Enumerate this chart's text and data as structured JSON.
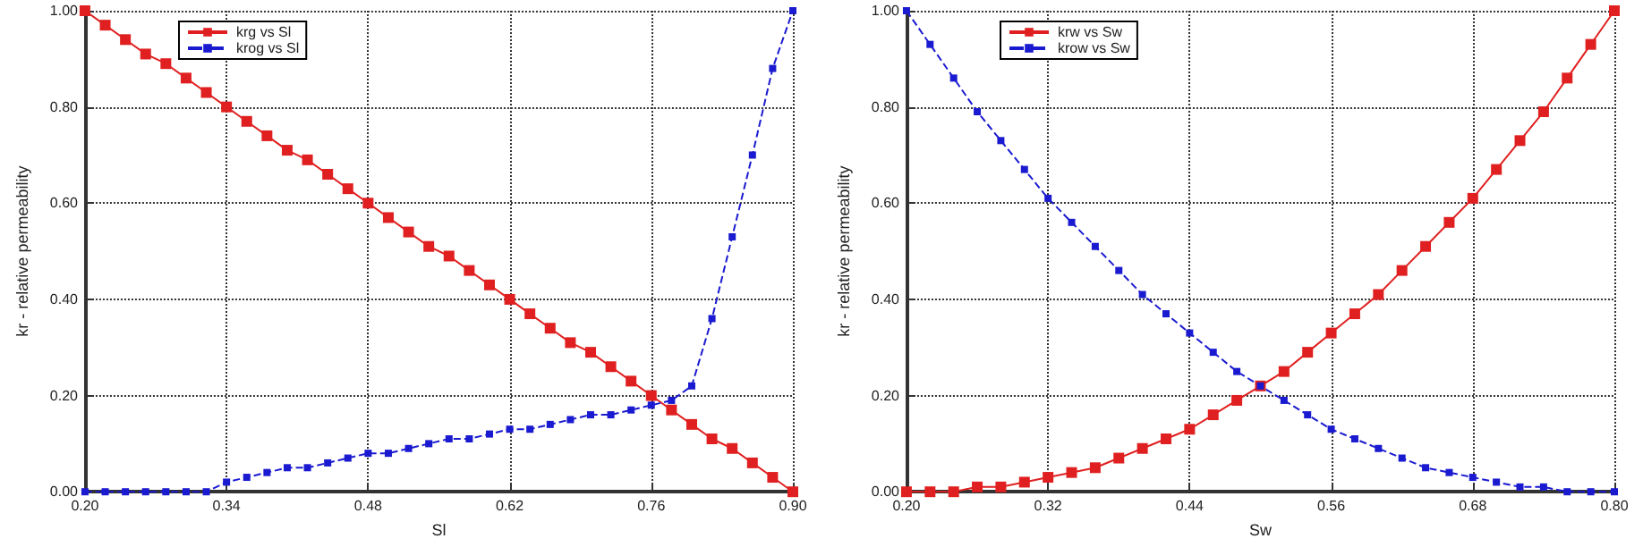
{
  "chart_data": [
    {
      "type": "line",
      "xlabel": "Sl",
      "ylabel": "kr - relative permeability",
      "x": [
        0.2,
        0.22,
        0.24,
        0.26,
        0.28,
        0.3,
        0.32,
        0.34,
        0.36,
        0.38,
        0.4,
        0.42,
        0.44,
        0.46,
        0.48,
        0.5,
        0.52,
        0.54,
        0.56,
        0.58,
        0.6,
        0.62,
        0.64,
        0.66,
        0.68,
        0.7,
        0.72,
        0.74,
        0.76,
        0.78,
        0.8,
        0.82,
        0.84,
        0.86,
        0.88,
        0.9
      ],
      "series": [
        {
          "name": "krg vs Sl",
          "color": "#e02020",
          "line_style": "solid",
          "values": [
            1.0,
            0.97,
            0.94,
            0.91,
            0.89,
            0.86,
            0.83,
            0.8,
            0.77,
            0.74,
            0.71,
            0.69,
            0.66,
            0.63,
            0.6,
            0.57,
            0.54,
            0.51,
            0.49,
            0.46,
            0.43,
            0.4,
            0.37,
            0.34,
            0.31,
            0.29,
            0.26,
            0.23,
            0.2,
            0.17,
            0.14,
            0.11,
            0.09,
            0.06,
            0.03,
            0.0
          ]
        },
        {
          "name": "krog vs Sl",
          "color": "#1a1ad0",
          "line_style": "dashed",
          "values": [
            0.0,
            0.0,
            0.0,
            0.0,
            0.0,
            0.0,
            0.0,
            0.02,
            0.03,
            0.04,
            0.05,
            0.05,
            0.06,
            0.07,
            0.08,
            0.08,
            0.09,
            0.1,
            0.11,
            0.11,
            0.12,
            0.13,
            0.13,
            0.14,
            0.15,
            0.16,
            0.16,
            0.17,
            0.18,
            0.19,
            0.22,
            0.36,
            0.53,
            0.7,
            0.88,
            1.0
          ]
        }
      ],
      "xlim": [
        0.2,
        0.9
      ],
      "xticks": [
        {
          "value": 0.2,
          "label": "0.20"
        },
        0.34,
        0.48,
        0.62,
        0.76,
        {
          "value": 0.9,
          "label": "0.90"
        }
      ],
      "ylim": [
        0,
        1
      ],
      "yticks": [
        {
          "value": 0,
          "label": "0.00"
        },
        {
          "value": 0.2,
          "label": "0.20"
        },
        {
          "value": 0.4,
          "label": "0.40"
        },
        {
          "value": 0.6,
          "label": "0.60"
        },
        {
          "value": 0.8,
          "label": "0.80"
        },
        {
          "value": 1,
          "label": "1.00"
        }
      ],
      "grid": true,
      "legend": "top left",
      "marker": "square"
    },
    {
      "type": "line",
      "xlabel": "Sw",
      "ylabel": "kr - relative permeability",
      "x": [
        0.2,
        0.22,
        0.24,
        0.26,
        0.28,
        0.3,
        0.32,
        0.34,
        0.36,
        0.38,
        0.4,
        0.42,
        0.44,
        0.46,
        0.48,
        0.5,
        0.52,
        0.54,
        0.56,
        0.58,
        0.6,
        0.62,
        0.64,
        0.66,
        0.68,
        0.7,
        0.72,
        0.74,
        0.76,
        0.78,
        0.8
      ],
      "series": [
        {
          "name": "krw vs Sw",
          "color": "#e02020",
          "line_style": "solid",
          "values": [
            0.0,
            0.0,
            0.0,
            0.01,
            0.01,
            0.02,
            0.03,
            0.04,
            0.05,
            0.07,
            0.09,
            0.11,
            0.13,
            0.16,
            0.19,
            0.22,
            0.25,
            0.29,
            0.33,
            0.37,
            0.41,
            0.46,
            0.51,
            0.56,
            0.61,
            0.67,
            0.73,
            0.79,
            0.86,
            0.93,
            1.0
          ]
        },
        {
          "name": "krow vs Sw",
          "color": "#1a1ad0",
          "line_style": "dashed",
          "values": [
            1.0,
            0.93,
            0.86,
            0.79,
            0.73,
            0.67,
            0.61,
            0.56,
            0.51,
            0.46,
            0.41,
            0.37,
            0.33,
            0.29,
            0.25,
            0.22,
            0.19,
            0.16,
            0.13,
            0.11,
            0.09,
            0.07,
            0.05,
            0.04,
            0.03,
            0.02,
            0.01,
            0.01,
            0.0,
            0.0,
            0.0
          ]
        }
      ],
      "xlim": [
        0.2,
        0.8
      ],
      "xticks": [
        {
          "value": 0.2,
          "label": "0.20"
        },
        0.32,
        0.44,
        0.56,
        0.68,
        {
          "value": 0.8,
          "label": "0.80"
        }
      ],
      "ylim": [
        0,
        1
      ],
      "yticks": [
        {
          "value": 0,
          "label": "0.00"
        },
        {
          "value": 0.2,
          "label": "0.20"
        },
        {
          "value": 0.4,
          "label": "0.40"
        },
        {
          "value": 0.6,
          "label": "0.60"
        },
        {
          "value": 0.8,
          "label": "0.80"
        },
        {
          "value": 1,
          "label": "1.00"
        }
      ],
      "grid": true,
      "legend": "top left",
      "marker": "square"
    }
  ]
}
